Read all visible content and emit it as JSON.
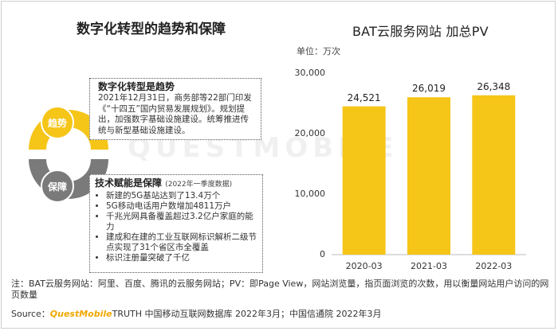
{
  "left_title": "数字化转型的趋势和保障",
  "diagram": {
    "trend_label": "趋势",
    "guarantee_label": "保障",
    "box1": {
      "title": "数字化转型是趋势",
      "body": "2021年12月31日，商务部等22部门印发《“十四五”国内贸易发展规划》。规划提出，加强数字基础设施建设。统筹推进传统与新型基础设施建设。"
    },
    "box2": {
      "title": "技术赋能是保障",
      "title_note": "(2022年一季度数据)",
      "bullets": [
        "新建的5G基站达到了13.4万个",
        "5G移动电话用户数增加4811万户",
        "千兆光网具备覆盖超过3.2亿户家庭的能力",
        "建成和在建的工业互联网标识解析二级节点实现了31个省区市全覆盖",
        "标识注册量突破了千亿"
      ]
    },
    "colors": {
      "trend": "#f5c518",
      "guarantee": "#7a7a7a"
    }
  },
  "watermark": "QUESTMOBILE",
  "chart_data": {
    "type": "bar",
    "title": "BAT云服务网站 加总PV",
    "unit": "单位：万次",
    "categories": [
      "2020-03",
      "2021-03",
      "2022-03"
    ],
    "values": [
      24521,
      26019,
      26348
    ],
    "data_labels": [
      "24,521",
      "26,019",
      "26,348"
    ],
    "yticks": [
      0,
      10000,
      20000,
      30000
    ],
    "ytick_labels": [
      "0",
      "10,000",
      "20,000",
      "30,000"
    ],
    "ylim": [
      0,
      30000
    ],
    "grid": false,
    "bar_color": "#f5c518"
  },
  "footer": {
    "note": "注：BAT云服务网站：阿里、百度、腾讯的云服务网站；PV：即Page View，网站浏览量，指页面浏览的次数，用以衡量网站用户访问的网页数量",
    "source_prefix": "Source：",
    "source_brand": "QuestMobile",
    "source_rest": "TRUTH 中国移动互联网数据库 2022年3月；中国信通院 2022年3月"
  }
}
